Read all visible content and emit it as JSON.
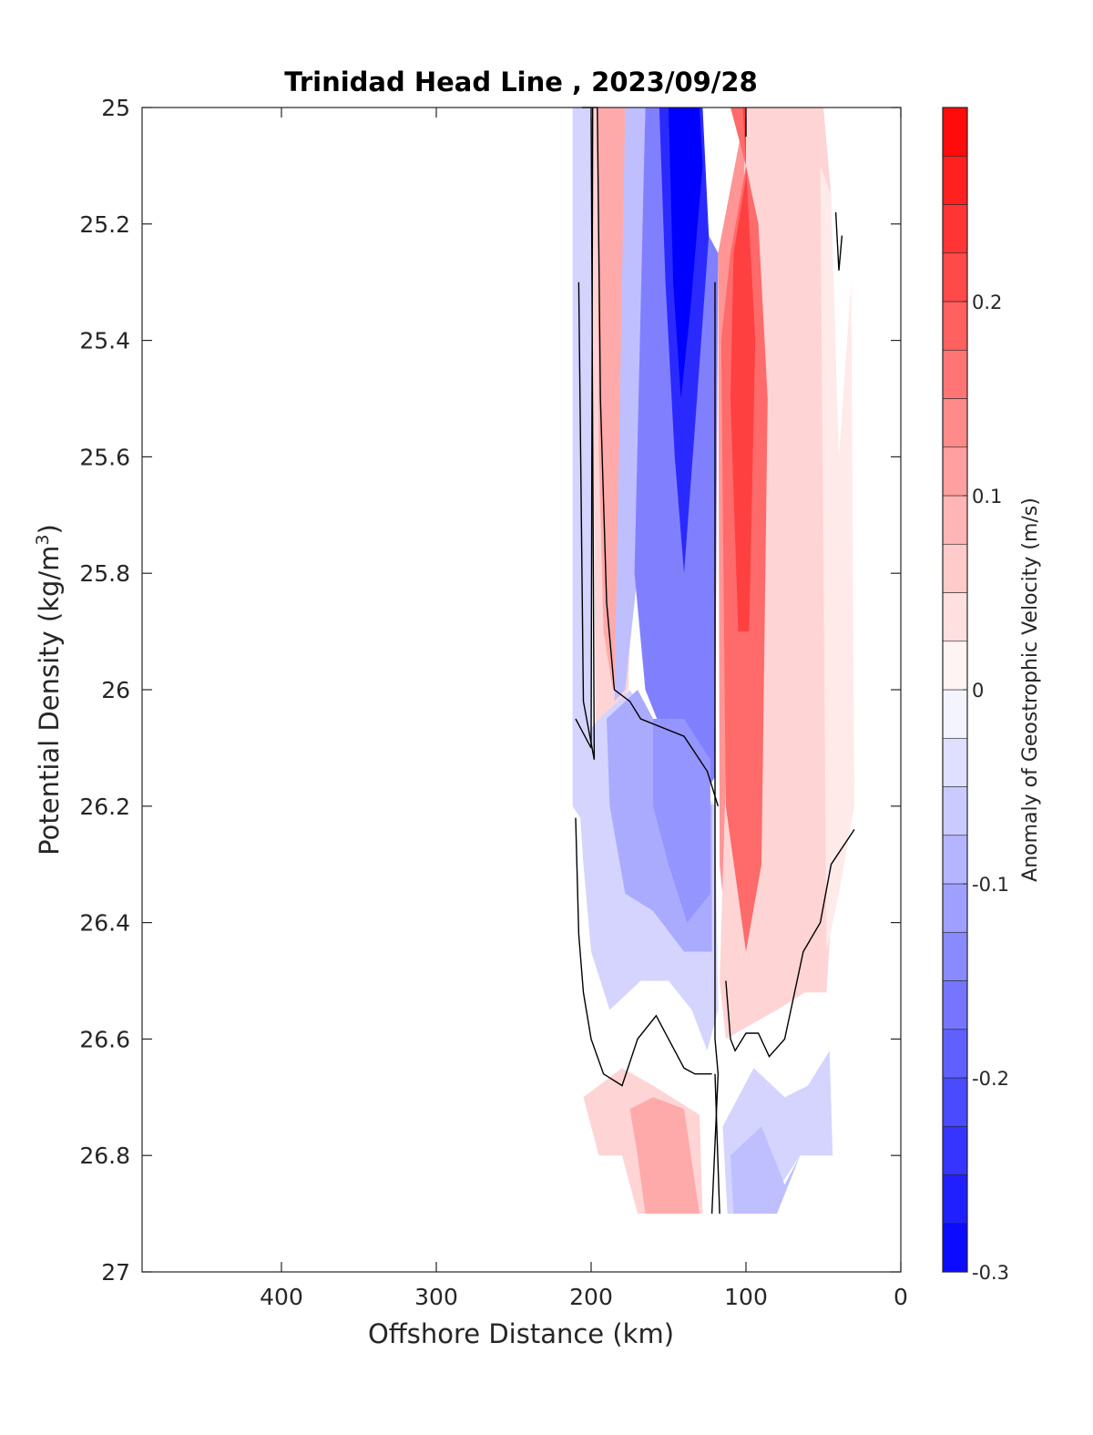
{
  "chart_data": {
    "type": "heatmap",
    "title": "Trinidad Head Line , 2023/09/28",
    "xlabel": "Offshore Distance (km)",
    "ylabel_main": "Potential Density (kg/m",
    "ylabel_sup": "3",
    "ylabel_close": ")",
    "xlim": [
      490,
      0
    ],
    "ylim": [
      25,
      27
    ],
    "x_reversed": true,
    "y_reversed": true,
    "x_ticks": [
      400,
      300,
      200,
      100,
      0
    ],
    "y_ticks": [
      25,
      25.2,
      25.4,
      25.6,
      25.8,
      26,
      26.2,
      26.4,
      26.6,
      26.8,
      27
    ],
    "y_tick_labels": [
      "25",
      "25.2",
      "25.4",
      "25.6",
      "25.8",
      "26",
      "26.2",
      "26.4",
      "26.6",
      "26.8",
      "27"
    ],
    "colorbar": {
      "label": "Anomaly of Geostrophic Velocity (m/s)",
      "range": [
        -0.3,
        0.3
      ],
      "step": 0.025,
      "ticks": [
        -0.3,
        -0.2,
        -0.1,
        0,
        0.1,
        0.2
      ],
      "tick_labels": [
        "-0.3",
        "-0.2",
        "-0.1",
        "0",
        "0.1",
        "0.2"
      ],
      "neg_color": "#0000ff",
      "pos_color": "#ff0000",
      "zero_color": "#ffffff"
    },
    "regions": [
      {
        "value": -0.05,
        "points": [
          [
            212,
            25
          ],
          [
            200,
            25
          ],
          [
            200,
            26.12
          ],
          [
            207,
            26.22
          ],
          [
            212,
            26.2
          ]
        ]
      },
      {
        "value": 0.05,
        "points": [
          [
            200,
            25
          ],
          [
            175,
            25
          ],
          [
            172,
            25.6
          ],
          [
            176,
            26.0
          ],
          [
            190,
            26.05
          ],
          [
            197,
            26.1
          ]
        ]
      },
      {
        "value": 0.1,
        "points": [
          [
            196,
            25
          ],
          [
            178,
            25
          ],
          [
            180,
            25.9
          ],
          [
            186,
            26.0
          ],
          [
            192,
            25.9
          ],
          [
            195,
            25.6
          ]
        ]
      },
      {
        "value": -0.075,
        "points": [
          [
            178,
            25
          ],
          [
            165,
            25
          ],
          [
            170,
            25.8
          ],
          [
            178,
            26.0
          ],
          [
            185,
            26.02
          ]
        ]
      },
      {
        "value": -0.15,
        "points": [
          [
            165,
            25
          ],
          [
            135,
            25
          ],
          [
            128,
            25.2
          ],
          [
            118,
            25.25
          ],
          [
            120,
            26.15
          ],
          [
            132,
            26.2
          ],
          [
            150,
            26.1
          ],
          [
            165,
            26.0
          ],
          [
            172,
            25.8
          ]
        ]
      },
      {
        "value": -0.25,
        "points": [
          [
            156,
            25
          ],
          [
            128,
            25
          ],
          [
            124,
            25.22
          ],
          [
            133,
            25.55
          ],
          [
            140,
            25.8
          ],
          [
            146,
            25.6
          ],
          [
            152,
            25.3
          ]
        ]
      },
      {
        "value": -0.3,
        "points": [
          [
            150,
            25
          ],
          [
            130,
            25
          ],
          [
            128,
            25.1
          ],
          [
            136,
            25.35
          ],
          [
            142,
            25.5
          ],
          [
            147,
            25.3
          ]
        ]
      },
      {
        "value": -0.05,
        "points": [
          [
            210,
            26.1
          ],
          [
            195,
            26.05
          ],
          [
            175,
            26.0
          ],
          [
            150,
            26.1
          ],
          [
            120,
            26.2
          ],
          [
            118,
            26.55
          ],
          [
            125,
            26.62
          ],
          [
            135,
            26.55
          ],
          [
            150,
            26.5
          ],
          [
            168,
            26.5
          ],
          [
            188,
            26.55
          ],
          [
            200,
            26.45
          ],
          [
            205,
            26.3
          ]
        ]
      },
      {
        "value": -0.1,
        "points": [
          [
            190,
            26.05
          ],
          [
            170,
            26.0
          ],
          [
            150,
            26.1
          ],
          [
            122,
            26.2
          ],
          [
            122,
            26.45
          ],
          [
            140,
            26.45
          ],
          [
            160,
            26.38
          ],
          [
            178,
            26.35
          ],
          [
            188,
            26.2
          ]
        ]
      },
      {
        "value": -0.125,
        "points": [
          [
            160,
            26.05
          ],
          [
            140,
            26.05
          ],
          [
            123,
            26.12
          ],
          [
            123,
            26.35
          ],
          [
            138,
            26.4
          ],
          [
            150,
            26.3
          ],
          [
            160,
            26.2
          ]
        ]
      },
      {
        "value": 0.125,
        "points": [
          [
            118,
            25.25
          ],
          [
            100,
            25.0
          ],
          [
            75,
            25.0
          ],
          [
            68,
            25.4
          ],
          [
            65,
            26.0
          ],
          [
            62,
            26.45
          ],
          [
            75,
            26.52
          ],
          [
            88,
            26.55
          ],
          [
            108,
            26.55
          ],
          [
            117,
            26.3
          ]
        ]
      },
      {
        "value": 0.05,
        "points": [
          [
            100,
            25
          ],
          [
            50,
            25
          ],
          [
            45,
            25.15
          ],
          [
            42,
            25.8
          ],
          [
            44,
            26.35
          ],
          [
            48,
            26.52
          ],
          [
            62,
            26.52
          ],
          [
            80,
            26.55
          ],
          [
            100,
            26.58
          ],
          [
            113,
            26.6
          ],
          [
            117,
            26.5
          ]
        ]
      },
      {
        "value": 0.025,
        "points": [
          [
            52,
            25.1
          ],
          [
            45,
            25.15
          ],
          [
            40,
            25.6
          ],
          [
            32,
            25.3
          ],
          [
            30,
            26.2
          ],
          [
            40,
            26.35
          ],
          [
            48,
            26.45
          ]
        ]
      },
      {
        "value": 0.175,
        "points": [
          [
            110,
            25.0
          ],
          [
            100,
            25.0
          ],
          [
            100,
            25.1
          ],
          [
            110,
            25.25
          ],
          [
            116,
            25.4
          ],
          [
            113,
            26.2
          ],
          [
            100,
            26.45
          ],
          [
            90,
            26.3
          ],
          [
            86,
            25.5
          ],
          [
            92,
            25.2
          ],
          [
            100,
            25.1
          ]
        ]
      },
      {
        "value": 0.225,
        "points": [
          [
            102,
            25.0
          ],
          [
            100,
            25.0
          ],
          [
            100,
            25.12
          ],
          [
            108,
            25.25
          ],
          [
            110,
            25.5
          ],
          [
            105,
            25.9
          ],
          [
            98,
            25.9
          ],
          [
            94,
            25.4
          ]
        ]
      },
      {
        "value": 0.05,
        "points": [
          [
            205,
            26.7
          ],
          [
            180,
            26.65
          ],
          [
            160,
            26.68
          ],
          [
            130,
            26.73
          ],
          [
            128,
            26.9
          ],
          [
            170,
            26.9
          ],
          [
            180,
            26.8
          ],
          [
            195,
            26.8
          ]
        ]
      },
      {
        "value": 0.1,
        "points": [
          [
            175,
            26.72
          ],
          [
            160,
            26.7
          ],
          [
            140,
            26.72
          ],
          [
            130,
            26.9
          ],
          [
            165,
            26.9
          ],
          [
            170,
            26.8
          ]
        ]
      },
      {
        "value": -0.05,
        "points": [
          [
            115,
            26.75
          ],
          [
            95,
            26.65
          ],
          [
            75,
            26.7
          ],
          [
            60,
            26.68
          ],
          [
            46,
            26.62
          ],
          [
            44,
            26.8
          ],
          [
            65,
            26.8
          ],
          [
            90,
            26.9
          ],
          [
            112,
            26.9
          ]
        ]
      },
      {
        "value": -0.075,
        "points": [
          [
            110,
            26.8
          ],
          [
            90,
            26.75
          ],
          [
            75,
            26.85
          ],
          [
            65,
            26.8
          ],
          [
            80,
            26.9
          ],
          [
            108,
            26.9
          ]
        ]
      }
    ],
    "zero_contours": [
      [
        [
          200,
          25
        ],
        [
          198,
          26.12
        ],
        [
          205,
          26.02
        ],
        [
          208,
          25.3
        ]
      ],
      [
        [
          199,
          25
        ],
        [
          200,
          26.1
        ],
        [
          210,
          26.05
        ]
      ],
      [
        [
          206,
          25
        ],
        [
          196,
          25
        ],
        [
          194,
          25.5
        ],
        [
          190,
          25.85
        ],
        [
          185,
          26.0
        ],
        [
          175,
          26.02
        ],
        [
          168,
          26.05
        ],
        [
          140,
          26.08
        ],
        [
          125,
          26.14
        ],
        [
          118,
          26.2
        ]
      ],
      [
        [
          120,
          25.3
        ],
        [
          120,
          26.6
        ],
        [
          118,
          26.66
        ],
        [
          122,
          26.9
        ]
      ],
      [
        [
          100,
          25
        ],
        [
          100,
          25.05
        ]
      ],
      [
        [
          210,
          26.22
        ],
        [
          208,
          26.42
        ],
        [
          205,
          26.52
        ],
        [
          200,
          26.6
        ],
        [
          192,
          26.66
        ],
        [
          180,
          26.68
        ],
        [
          170,
          26.6
        ],
        [
          158,
          26.56
        ],
        [
          150,
          26.6
        ],
        [
          140,
          26.65
        ],
        [
          133,
          26.66
        ],
        [
          122,
          26.66
        ]
      ],
      [
        [
          120,
          26.66
        ],
        [
          117,
          26.9
        ]
      ],
      [
        [
          113,
          26.5
        ],
        [
          110,
          26.6
        ],
        [
          107,
          26.62
        ],
        [
          100,
          26.59
        ],
        [
          92,
          26.59
        ],
        [
          85,
          26.63
        ],
        [
          75,
          26.6
        ],
        [
          63,
          26.45
        ],
        [
          52,
          26.4
        ],
        [
          45,
          26.3
        ],
        [
          30,
          26.24
        ]
      ],
      [
        [
          42,
          25.18
        ],
        [
          40,
          25.28
        ],
        [
          38,
          25.22
        ]
      ]
    ]
  }
}
